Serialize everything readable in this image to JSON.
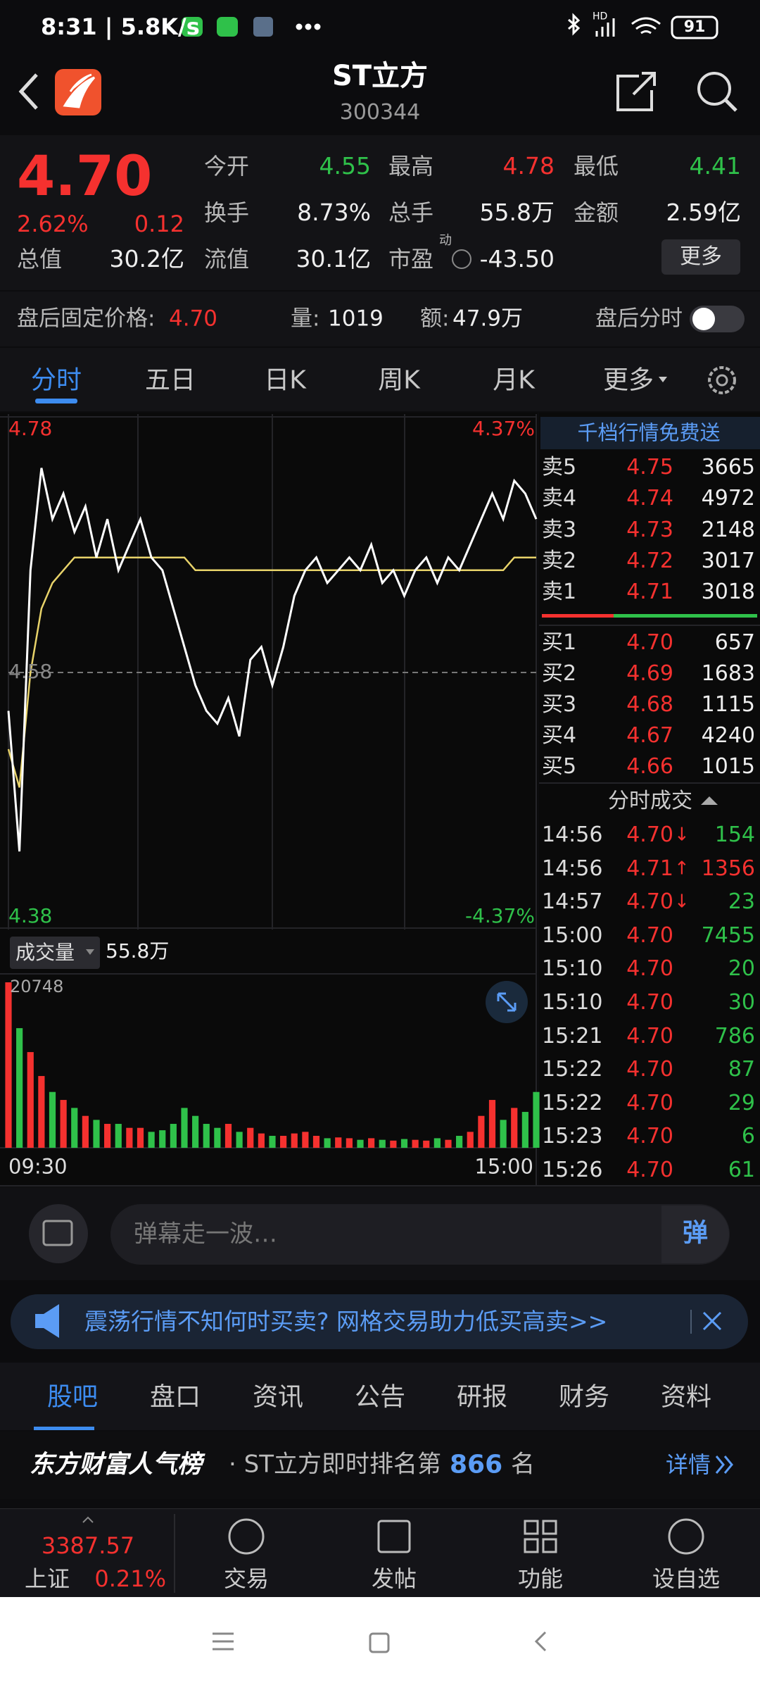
{
  "status_bar": {
    "time_speed": "8:31 | 5.8K/s",
    "network": "HD",
    "battery": "91"
  },
  "header": {
    "title": "ST立方",
    "code": "300344"
  },
  "quote": {
    "price": "4.70",
    "change_pct": "2.62%",
    "change": "0.12",
    "fields": [
      {
        "label": "今开",
        "value": "4.55",
        "color": "#2fc14a"
      },
      {
        "label": "最高",
        "value": "4.78",
        "color": "#f5312f"
      },
      {
        "label": "最低",
        "value": "4.41",
        "color": "#2fc14a"
      },
      {
        "label": "换手",
        "value": "8.73%",
        "color": "#eeeeee"
      },
      {
        "label": "总手",
        "value": "55.8万",
        "color": "#eeeeee"
      },
      {
        "label": "金额",
        "value": "2.59亿",
        "color": "#eeeeee"
      },
      {
        "label": "总值",
        "value": "30.2亿",
        "color": "#eeeeee"
      },
      {
        "label": "流值",
        "value": "30.1亿",
        "color": "#eeeeee"
      },
      {
        "label": "市盈",
        "value": "-43.50",
        "color": "#eeeeee",
        "superscript": "动"
      }
    ],
    "more_button": "更多"
  },
  "after_hours": {
    "label": "盘后固定价格:",
    "price": "4.70",
    "volume_label": "量:",
    "volume": "1019",
    "amount_label": "额:",
    "amount": "47.9万",
    "chart_toggle": "盘后分时"
  },
  "tabs": [
    "分时",
    "五日",
    "日K",
    "周K",
    "月K",
    "更多"
  ],
  "intraday": {
    "price_ylim": [
      4.38,
      4.78
    ],
    "mid": 4.58,
    "top_pct": "4.37%",
    "bottom_pct": "-4.37%",
    "price_color": "#ffffff",
    "avg_color": "#e8d36a",
    "prices": [
      4.55,
      4.44,
      4.66,
      4.74,
      4.7,
      4.72,
      4.69,
      4.71,
      4.67,
      4.7,
      4.66,
      4.68,
      4.7,
      4.67,
      4.66,
      4.63,
      4.6,
      4.57,
      4.55,
      4.54,
      4.56,
      4.53,
      4.59,
      4.6,
      4.57,
      4.6,
      4.64,
      4.66,
      4.67,
      4.65,
      4.66,
      4.67,
      4.66,
      4.68,
      4.65,
      4.66,
      4.64,
      4.66,
      4.67,
      4.65,
      4.67,
      4.66,
      4.68,
      4.7,
      4.72,
      4.7,
      4.73,
      4.72,
      4.7
    ],
    "avg_prices": [
      4.52,
      4.49,
      4.58,
      4.63,
      4.65,
      4.66,
      4.67,
      4.67,
      4.67,
      4.67,
      4.67,
      4.67,
      4.67,
      4.67,
      4.67,
      4.67,
      4.67,
      4.66,
      4.66,
      4.66,
      4.66,
      4.66,
      4.66,
      4.66,
      4.66,
      4.66,
      4.66,
      4.66,
      4.66,
      4.66,
      4.66,
      4.66,
      4.66,
      4.66,
      4.66,
      4.66,
      4.66,
      4.66,
      4.66,
      4.66,
      4.66,
      4.66,
      4.66,
      4.66,
      4.66,
      4.66,
      4.67,
      4.67,
      4.67
    ],
    "volume_label": "成交量",
    "total_volume": "55.8万",
    "volume_ylim": [
      0,
      20748
    ],
    "volumes": [
      20748,
      15000,
      12000,
      9000,
      7000,
      6000,
      5000,
      4000,
      3500,
      3000,
      3000,
      2500,
      2500,
      2000,
      2200,
      3000,
      5000,
      4000,
      3000,
      2500,
      3000,
      2000,
      2500,
      1800,
      1500,
      1500,
      1800,
      2000,
      1500,
      1200,
      1300,
      1200,
      1000,
      1200,
      1000,
      900,
      1100,
      1000,
      900,
      1200,
      1000,
      1500,
      2000,
      4000,
      6000,
      3500,
      5000,
      4500,
      7000
    ],
    "up_color": "#f5312f",
    "down_color": "#2fc14a",
    "time_labels": [
      "09:30",
      "15:00"
    ]
  },
  "order_book": {
    "promo": "千档行情免费送",
    "asks": [
      {
        "label": "卖5",
        "price": "4.75",
        "volume": "3665"
      },
      {
        "label": "卖4",
        "price": "4.74",
        "volume": "4972"
      },
      {
        "label": "卖3",
        "price": "4.73",
        "volume": "2148"
      },
      {
        "label": "卖2",
        "price": "4.72",
        "volume": "3017"
      },
      {
        "label": "卖1",
        "price": "4.71",
        "volume": "3018"
      }
    ],
    "bids": [
      {
        "label": "买1",
        "price": "4.70",
        "volume": "657"
      },
      {
        "label": "买2",
        "price": "4.69",
        "volume": "1683"
      },
      {
        "label": "买3",
        "price": "4.68",
        "volume": "1115"
      },
      {
        "label": "买4",
        "price": "4.67",
        "volume": "4240"
      },
      {
        "label": "买5",
        "price": "4.66",
        "volume": "1015"
      }
    ]
  },
  "trades": {
    "title": "分时成交",
    "rows": [
      {
        "time": "14:56",
        "price": "4.70",
        "arrow": "↓",
        "volume": "154",
        "volume_color": "#2fc14a"
      },
      {
        "time": "14:56",
        "price": "4.71",
        "arrow": "↑",
        "volume": "1356",
        "volume_color": "#f5312f"
      },
      {
        "time": "14:57",
        "price": "4.70",
        "arrow": "↓",
        "volume": "23",
        "volume_color": "#2fc14a"
      },
      {
        "time": "15:00",
        "price": "4.70",
        "volume": "7455",
        "volume_color": "#2fc14a"
      },
      {
        "time": "15:10",
        "price": "4.70",
        "volume": "20",
        "volume_color": "#2fc14a"
      },
      {
        "time": "15:10",
        "price": "4.70",
        "volume": "30",
        "volume_color": "#2fc14a"
      },
      {
        "time": "15:21",
        "price": "4.70",
        "volume": "786",
        "volume_color": "#2fc14a"
      },
      {
        "time": "15:22",
        "price": "4.70",
        "volume": "87",
        "volume_color": "#2fc14a"
      },
      {
        "time": "15:22",
        "price": "4.70",
        "volume": "29",
        "volume_color": "#2fc14a"
      },
      {
        "time": "15:23",
        "price": "4.70",
        "volume": "6",
        "volume_color": "#2fc14a"
      },
      {
        "time": "15:26",
        "price": "4.70",
        "volume": "61",
        "volume_color": "#2fc14a"
      }
    ]
  },
  "danmaku": {
    "placeholder": "弹幕走一波…",
    "button": "弹"
  },
  "banner": {
    "text": "震荡行情不知何时买卖? 网格交易助力低买高卖>>"
  },
  "section_tabs": [
    "股吧",
    "盘口",
    "资讯",
    "公告",
    "研报",
    "财务",
    "资料"
  ],
  "ranking": {
    "title": "东方财富人气榜",
    "text": "· ST立方即时排名第",
    "rank": "866",
    "suffix": "名",
    "link": "详情"
  },
  "bottom_nav": {
    "index_value": "3387.57",
    "index_name": "上证",
    "index_change": "0.21%",
    "items": [
      "交易",
      "发帖",
      "功能",
      "设自选"
    ]
  }
}
